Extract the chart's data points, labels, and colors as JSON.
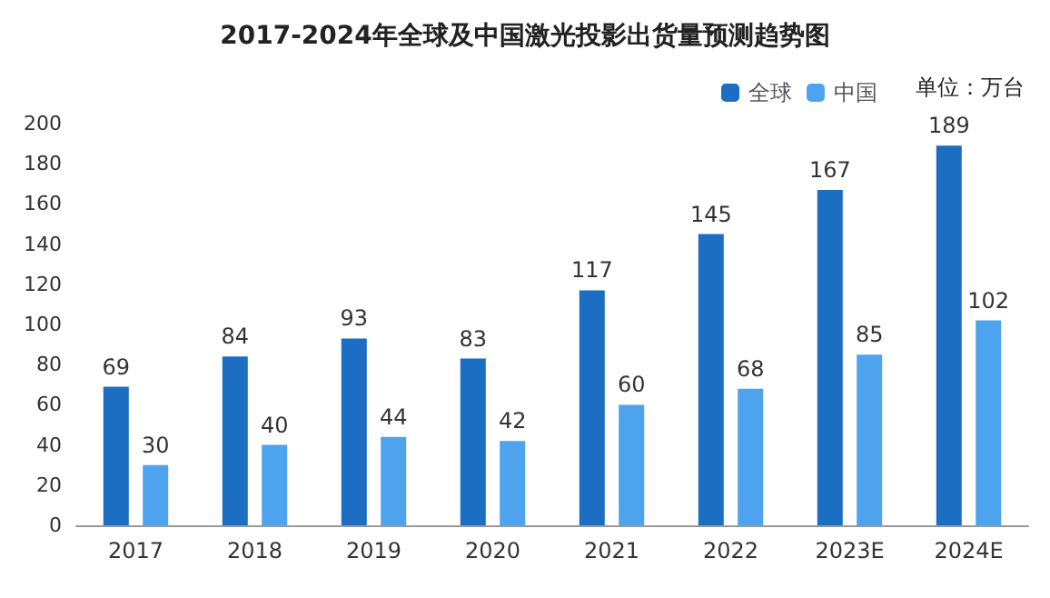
{
  "chart_data": {
    "type": "bar",
    "title": "2017-2024年全球及中国激光投影出货量预测趋势图",
    "annotations": [
      "单位：万台"
    ],
    "categories": [
      "2017",
      "2018",
      "2019",
      "2020",
      "2021",
      "2022",
      "2023E",
      "2024E"
    ],
    "series": [
      {
        "name": "全球",
        "color": "#1b6ec2",
        "values": [
          69,
          84,
          93,
          83,
          117,
          145,
          167,
          189
        ]
      },
      {
        "name": "中国",
        "color": "#4da3ee",
        "values": [
          30,
          40,
          44,
          42,
          60,
          68,
          85,
          102
        ]
      }
    ],
    "ylim": [
      0,
      200
    ],
    "yticks": [
      0,
      20,
      40,
      60,
      80,
      100,
      120,
      140,
      160,
      180,
      200
    ],
    "grid": false,
    "legend": "top right",
    "data_labels": true
  }
}
